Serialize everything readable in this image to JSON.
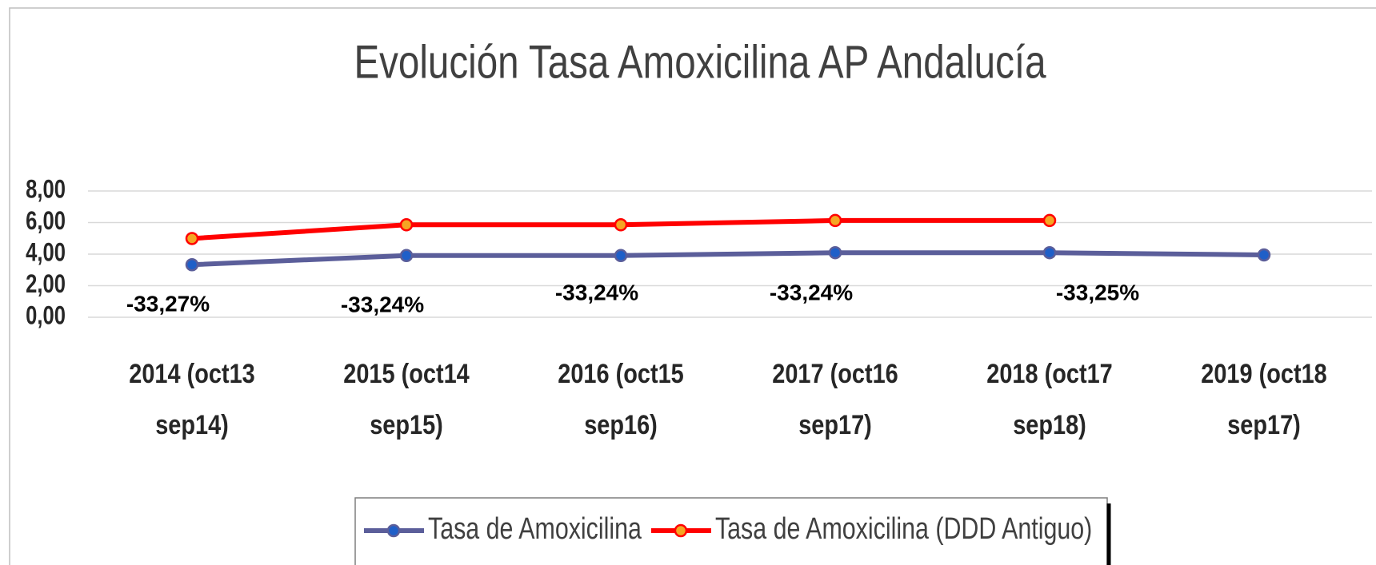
{
  "chart_data": {
    "type": "line",
    "title": "Evolución Tasa Amoxicilina AP Andalucía",
    "categories": [
      "2014 (oct13\nsep14)",
      "2015 (oct14\nsep15)",
      "2016 (oct15\nsep16)",
      "2017 (oct16\nsep17)",
      "2018 (oct17\nsep18)",
      "2019 (oct18\nsep17)"
    ],
    "series": [
      {
        "name": "Tasa de Amoxicilina",
        "color": "#5b5e9a",
        "marker_color": "#1f5fc8",
        "values": [
          3.33,
          3.91,
          3.91,
          4.09,
          4.09,
          3.95
        ]
      },
      {
        "name": "Tasa de Amoxicilina (DDD Antiguo)",
        "color": "#ff0000",
        "marker_color": "#f5a623",
        "values": [
          4.99,
          5.86,
          5.86,
          6.13,
          6.13,
          null
        ]
      }
    ],
    "annotations": [
      "-33,27%",
      "-33,24%",
      "-33,24%",
      "-33,24%",
      "-33,25%"
    ],
    "ylim": [
      0,
      8
    ],
    "yticks": [
      {
        "value": 0,
        "label": "0,00"
      },
      {
        "value": 2,
        "label": "2,00"
      },
      {
        "value": 4,
        "label": "4,00"
      },
      {
        "value": 6,
        "label": "6,00"
      },
      {
        "value": 8,
        "label": "8,00"
      }
    ],
    "grid": true,
    "legend": "bottom"
  }
}
